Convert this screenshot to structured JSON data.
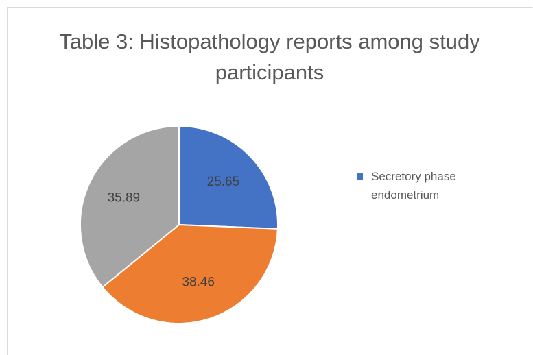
{
  "chart_data": {
    "type": "pie",
    "title": "Table 3: Histopathology reports among study participants",
    "categories": [
      "Secretory phase endometrium",
      null,
      null
    ],
    "values": [
      25.65,
      38.46,
      35.89
    ],
    "colors": [
      "#4472c4",
      "#ed7d31",
      "#a5a5a5"
    ],
    "legend": "right"
  }
}
